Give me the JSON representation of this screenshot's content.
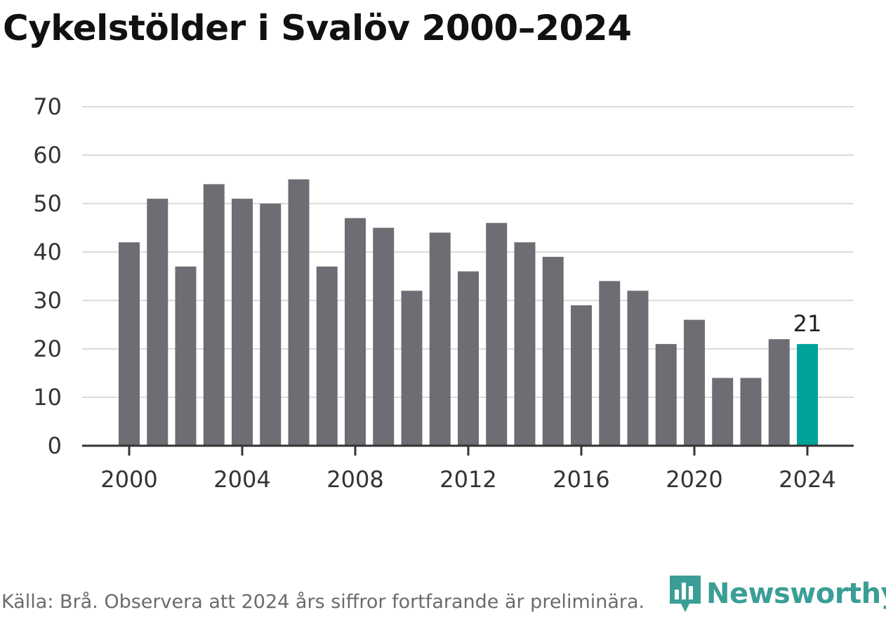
{
  "chart_data": {
    "type": "bar",
    "title": "Cykelstölder i Svalöv 2000–2024",
    "categories": [
      "2000",
      "2001",
      "2002",
      "2003",
      "2004",
      "2005",
      "2006",
      "2007",
      "2008",
      "2009",
      "2010",
      "2011",
      "2012",
      "2013",
      "2014",
      "2015",
      "2016",
      "2017",
      "2018",
      "2019",
      "2020",
      "2021",
      "2022",
      "2023",
      "2024"
    ],
    "values": [
      42,
      51,
      37,
      54,
      51,
      50,
      55,
      37,
      47,
      45,
      32,
      44,
      36,
      46,
      42,
      39,
      29,
      34,
      32,
      21,
      26,
      14,
      14,
      22,
      21
    ],
    "highlight_index": 24,
    "highlight_label": "21",
    "x_tick_labels": [
      "2000",
      "2004",
      "2008",
      "2012",
      "2016",
      "2020",
      "2024"
    ],
    "y_ticks": [
      0,
      10,
      20,
      30,
      40,
      50,
      60,
      70
    ],
    "ylim": [
      0,
      70
    ],
    "xlabel": "",
    "ylabel": "",
    "grid": true,
    "colors": {
      "bar": "#6e6d73",
      "highlight": "#00a39a",
      "grid": "#dcdcdc",
      "axis": "#333333"
    }
  },
  "footer": {
    "source": "Källa: Brå. Observera att 2024 års siffror fortfarande är preliminära."
  },
  "brand": {
    "name": "Newsworthy",
    "icon": "newsworthy-logo-icon",
    "color": "#3a9e96"
  }
}
